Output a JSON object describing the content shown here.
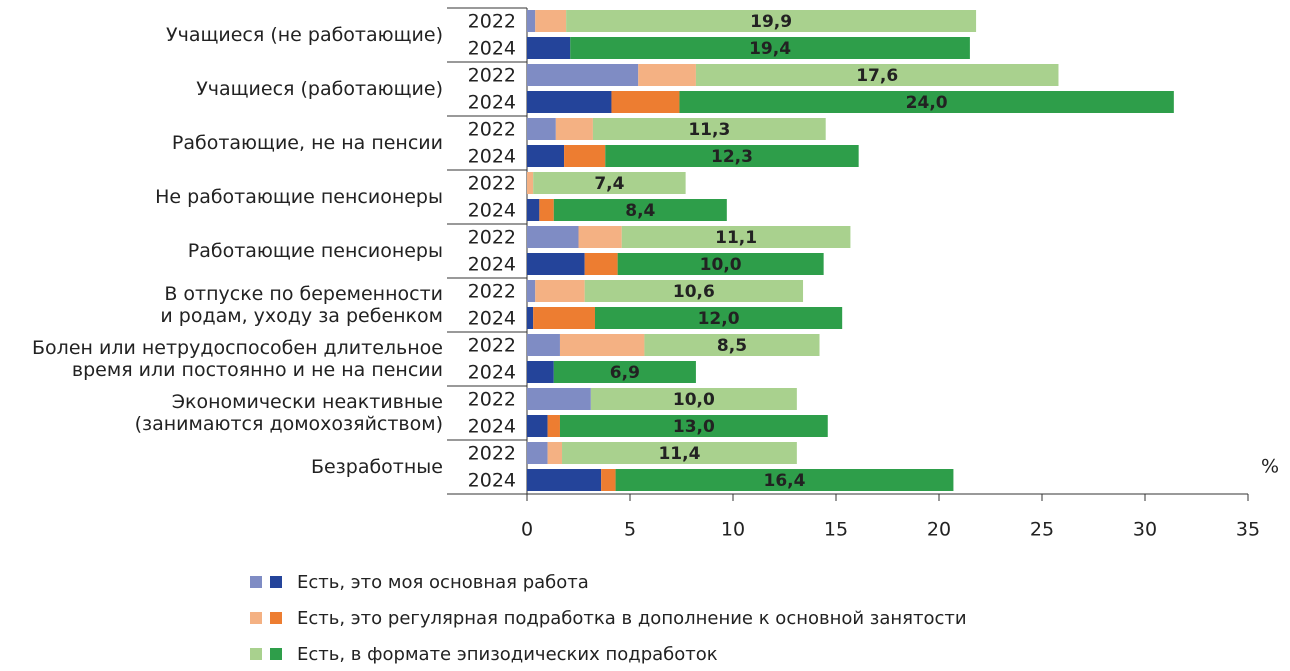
{
  "chart_data": {
    "type": "bar",
    "orientation": "horizontal",
    "stacked": true,
    "categories": [
      "Учащиеся (не работающие)",
      "Учащиеся (работающие)",
      "Работающие, не на пенсии",
      "Не работающие пенсионеры",
      "Работающие пенсионеры",
      "В отпуске по беременности\nи родам, уходу за ребенком",
      "Болен или нетрудоспособен длительное\nвремя или постоянно и не на пенсии",
      "Экономически неактивные\n(занимаются домохозяйством)",
      "Безработные"
    ],
    "groups": [
      "2022",
      "2024"
    ],
    "series": [
      {
        "name": "Есть, это моя основная работа",
        "colors": [
          "#7f8cc4",
          "#24449a"
        ],
        "values": [
          [
            0.4,
            2.1
          ],
          [
            5.4,
            4.1
          ],
          [
            1.4,
            1.8
          ],
          [
            0,
            0.6
          ],
          [
            2.5,
            2.8
          ],
          [
            0.4,
            0.3
          ],
          [
            1.6,
            1.3
          ],
          [
            3.1,
            1.0
          ],
          [
            1.0,
            3.6
          ]
        ]
      },
      {
        "name": "Есть, это регулярная подработка в дополнение к основной занятости",
        "colors": [
          "#f4b183",
          "#ed7d31"
        ],
        "values": [
          [
            1.5,
            0
          ],
          [
            2.8,
            3.3
          ],
          [
            1.8,
            2.0
          ],
          [
            0.3,
            0.7
          ],
          [
            2.1,
            1.6
          ],
          [
            2.4,
            3.0
          ],
          [
            4.1,
            0
          ],
          [
            0,
            0.6
          ],
          [
            0.7,
            0.7
          ]
        ]
      },
      {
        "name": "Есть, в формате эпизодических подработок",
        "colors": [
          "#a9d18e",
          "#2e9e4a"
        ],
        "values": [
          [
            19.9,
            19.4
          ],
          [
            17.6,
            24.0
          ],
          [
            11.3,
            12.3
          ],
          [
            7.4,
            8.4
          ],
          [
            11.1,
            10.0
          ],
          [
            10.6,
            12.0
          ],
          [
            8.5,
            6.9
          ],
          [
            10.0,
            13.0
          ],
          [
            11.4,
            16.4
          ]
        ],
        "value_labels": [
          [
            "19,9",
            "19,4"
          ],
          [
            "17,6",
            "24,0"
          ],
          [
            "11,3",
            "12,3"
          ],
          [
            "7,4",
            "8,4"
          ],
          [
            "11,1",
            "10,0"
          ],
          [
            "10,6",
            "12,0"
          ],
          [
            "8,5",
            "6,9"
          ],
          [
            "10,0",
            "13,0"
          ],
          [
            "11,4",
            "16,4"
          ]
        ]
      }
    ],
    "x_unit": "%",
    "xlim": [
      0,
      35
    ],
    "xticks": [
      0,
      5,
      10,
      15,
      20,
      25,
      30,
      35
    ]
  }
}
